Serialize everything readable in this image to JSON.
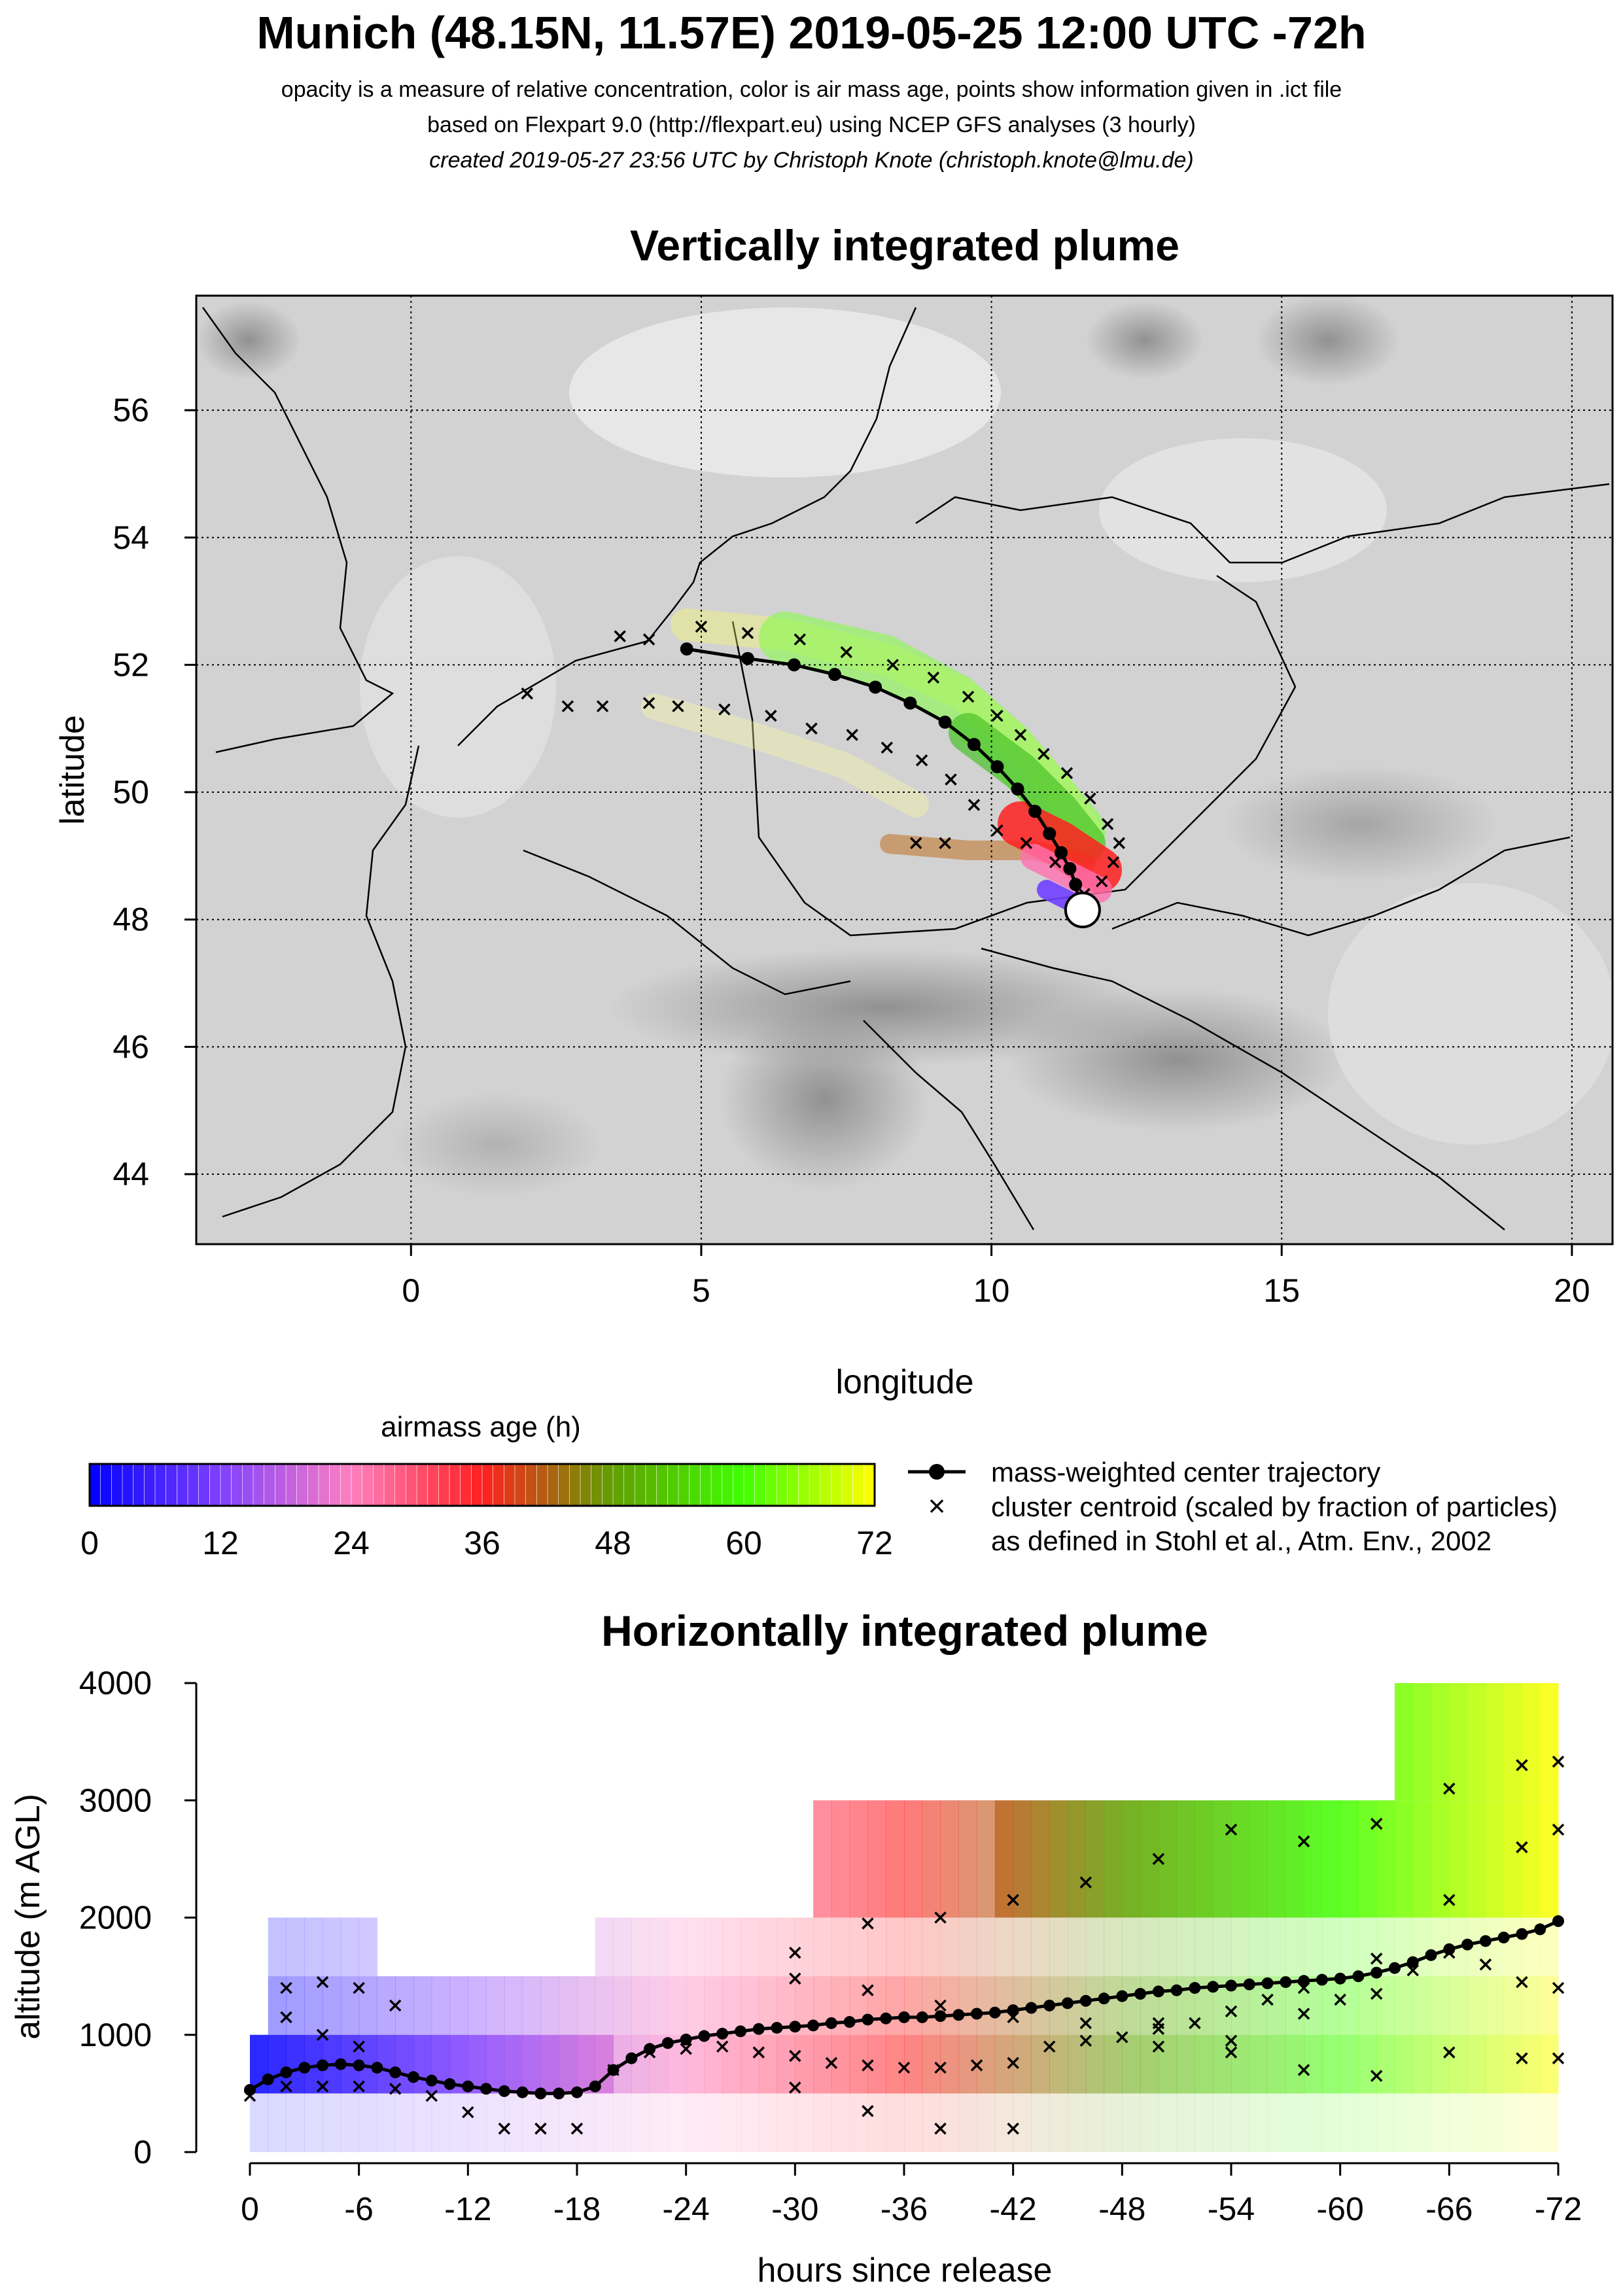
{
  "header": {
    "title": "Munich (48.15N, 11.57E) 2019-05-25 12:00 UTC -72h",
    "subtitle_1": "opacity is a measure of relative concentration, color is air mass age, points show information given in .ict file",
    "subtitle_2": "based on Flexpart 9.0 (http://flexpart.eu) using NCEP GFS analyses (3 hourly)",
    "subtitle_3": "created 2019-05-27 23:56 UTC by Christoph Knote (christoph.knote@lmu.de)"
  },
  "legend": {
    "colorbar_title": "airmass age (h)",
    "colorbar_ticks": [
      "0",
      "12",
      "24",
      "36",
      "48",
      "60",
      "72"
    ],
    "line_label": "mass-weighted center trajectory",
    "cross_label_1": "cluster centroid (scaled by fraction of particles)",
    "cross_label_2": "as defined in Stohl et al., Atm. Env., 2002"
  },
  "colors": {
    "age_0": "#0000ff",
    "age_12": "#8040ff",
    "age_24": "#ff80c0",
    "age_36": "#ff2020",
    "age_48": "#60a000",
    "age_60": "#40ff00",
    "age_72": "#ffff00",
    "terrain": "#c8c8c8",
    "marker": "#000000"
  },
  "chart_data": [
    {
      "type": "scatter",
      "title": "Vertically integrated plume",
      "xlabel": "longitude",
      "ylabel": "latitude",
      "xlim": [
        -3.7,
        20.7
      ],
      "ylim": [
        42.9,
        57.8
      ],
      "xticks": [
        "0",
        "5",
        "10",
        "15",
        "20"
      ],
      "yticks": [
        "44",
        "46",
        "48",
        "50",
        "52",
        "54",
        "56"
      ],
      "grid": true,
      "release_point": {
        "lon": 11.57,
        "lat": 48.15
      },
      "series": [
        {
          "name": "mass-weighted center trajectory",
          "points": [
            [
              11.57,
              48.15
            ],
            [
              11.5,
              48.3
            ],
            [
              11.45,
              48.55
            ],
            [
              11.35,
              48.8
            ],
            [
              11.2,
              49.05
            ],
            [
              11.0,
              49.35
            ],
            [
              10.75,
              49.7
            ],
            [
              10.45,
              50.05
            ],
            [
              10.1,
              50.4
            ],
            [
              9.7,
              50.75
            ],
            [
              9.2,
              51.1
            ],
            [
              8.6,
              51.4
            ],
            [
              8.0,
              51.65
            ],
            [
              7.3,
              51.85
            ],
            [
              6.6,
              52.0
            ],
            [
              5.8,
              52.1
            ],
            [
              4.75,
              52.25
            ]
          ]
        },
        {
          "name": "cluster centroid (scaled by fraction of particles)",
          "points": [
            [
              11.6,
              48.4
            ],
            [
              11.9,
              48.6
            ],
            [
              12.1,
              48.9
            ],
            [
              12.2,
              49.2
            ],
            [
              12.0,
              49.5
            ],
            [
              11.7,
              49.9
            ],
            [
              11.3,
              50.3
            ],
            [
              10.9,
              50.6
            ],
            [
              10.5,
              50.9
            ],
            [
              10.1,
              51.2
            ],
            [
              9.6,
              51.5
            ],
            [
              9.0,
              51.8
            ],
            [
              8.3,
              52.0
            ],
            [
              7.5,
              52.2
            ],
            [
              6.7,
              52.4
            ],
            [
              5.8,
              52.5
            ],
            [
              5.0,
              52.6
            ],
            [
              11.1,
              48.9
            ],
            [
              10.6,
              49.2
            ],
            [
              10.1,
              49.4
            ],
            [
              9.7,
              49.8
            ],
            [
              9.3,
              50.2
            ],
            [
              8.8,
              50.5
            ],
            [
              8.2,
              50.7
            ],
            [
              7.6,
              50.9
            ],
            [
              6.9,
              51.0
            ],
            [
              6.2,
              51.2
            ],
            [
              5.4,
              51.3
            ],
            [
              4.6,
              51.35
            ],
            [
              4.1,
              51.4
            ],
            [
              3.3,
              51.35
            ],
            [
              2.7,
              51.35
            ],
            [
              2.0,
              51.55
            ],
            [
              9.2,
              49.2
            ],
            [
              8.7,
              49.2
            ],
            [
              3.6,
              52.45
            ],
            [
              4.1,
              52.4
            ]
          ]
        }
      ]
    },
    {
      "type": "scatter",
      "title": "Horizontally integrated plume",
      "xlabel": "hours since release",
      "ylabel": "altitude (m AGL)",
      "xlim": [
        0,
        -72
      ],
      "ylim": [
        0,
        4000
      ],
      "xticks": [
        "0",
        "-6",
        "-12",
        "-18",
        "-24",
        "-30",
        "-36",
        "-42",
        "-48",
        "-54",
        "-60",
        "-66",
        "-72"
      ],
      "yticks": [
        "0",
        "1000",
        "2000",
        "3000",
        "4000"
      ],
      "series": [
        {
          "name": "mass-weighted center trajectory",
          "x": [
            0,
            -1,
            -2,
            -3,
            -4,
            -5,
            -6,
            -7,
            -8,
            -9,
            -10,
            -11,
            -12,
            -13,
            -14,
            -15,
            -16,
            -17,
            -18,
            -19,
            -20,
            -21,
            -22,
            -23,
            -24,
            -25,
            -26,
            -27,
            -28,
            -29,
            -30,
            -31,
            -32,
            -33,
            -34,
            -35,
            -36,
            -37,
            -38,
            -39,
            -40,
            -41,
            -42,
            -43,
            -44,
            -45,
            -46,
            -47,
            -48,
            -49,
            -50,
            -51,
            -52,
            -53,
            -54,
            -55,
            -56,
            -57,
            -58,
            -59,
            -60,
            -61,
            -62,
            -63,
            -64,
            -65,
            -66,
            -67,
            -68,
            -69,
            -70,
            -71,
            -72
          ],
          "y": [
            530,
            620,
            680,
            720,
            740,
            750,
            740,
            720,
            680,
            640,
            610,
            580,
            560,
            540,
            520,
            510,
            500,
            500,
            510,
            560,
            700,
            800,
            880,
            930,
            960,
            990,
            1010,
            1030,
            1050,
            1060,
            1070,
            1080,
            1100,
            1110,
            1130,
            1140,
            1150,
            1150,
            1160,
            1170,
            1180,
            1190,
            1210,
            1230,
            1250,
            1270,
            1290,
            1310,
            1330,
            1350,
            1370,
            1380,
            1400,
            1410,
            1420,
            1430,
            1440,
            1450,
            1460,
            1470,
            1480,
            1500,
            1530,
            1570,
            1620,
            1680,
            1730,
            1770,
            1800,
            1830,
            1860,
            1900,
            1970
          ]
        },
        {
          "name": "cluster centroid (scaled by fraction of particles)",
          "points": [
            [
              0,
              480
            ],
            [
              -2,
              560
            ],
            [
              -4,
              560
            ],
            [
              -6,
              560
            ],
            [
              -8,
              540
            ],
            [
              -10,
              480
            ],
            [
              -12,
              340
            ],
            [
              -14,
              200
            ],
            [
              -16,
              200
            ],
            [
              -18,
              200
            ],
            [
              -20,
              700
            ],
            [
              -22,
              850
            ],
            [
              -24,
              880
            ],
            [
              -26,
              900
            ],
            [
              -28,
              850
            ],
            [
              -30,
              820
            ],
            [
              -32,
              760
            ],
            [
              -34,
              740
            ],
            [
              -36,
              720
            ],
            [
              -38,
              720
            ],
            [
              -40,
              740
            ],
            [
              -42,
              760
            ],
            [
              -44,
              900
            ],
            [
              -46,
              950
            ],
            [
              -48,
              980
            ],
            [
              -50,
              1050
            ],
            [
              -52,
              1100
            ],
            [
              -54,
              950
            ],
            [
              -56,
              1300
            ],
            [
              -58,
              1180
            ],
            [
              -60,
              1300
            ],
            [
              -62,
              1350
            ],
            [
              -64,
              1550
            ],
            [
              -66,
              1700
            ],
            [
              -68,
              1600
            ],
            [
              -70,
              1450
            ],
            [
              -72,
              1400
            ],
            [
              -30,
              1700
            ],
            [
              -34,
              1950
            ],
            [
              -38,
              2000
            ],
            [
              -42,
              2150
            ],
            [
              -46,
              2300
            ],
            [
              -50,
              2500
            ],
            [
              -54,
              2750
            ],
            [
              -58,
              2650
            ],
            [
              -62,
              2800
            ],
            [
              -66,
              3100
            ],
            [
              -70,
              3300
            ],
            [
              -72,
              3330
            ],
            [
              -30,
              1480
            ],
            [
              -34,
              1380
            ],
            [
              -38,
              1250
            ],
            [
              -42,
              1150
            ],
            [
              -46,
              1100
            ],
            [
              -50,
              1100
            ],
            [
              -54,
              1200
            ],
            [
              -58,
              1400
            ],
            [
              -62,
              1650
            ],
            [
              -66,
              2150
            ],
            [
              -70,
              2600
            ],
            [
              -72,
              2750
            ],
            [
              -30,
              550
            ],
            [
              -34,
              350
            ],
            [
              -38,
              200
            ],
            [
              -42,
              200
            ],
            [
              -50,
              900
            ],
            [
              -54,
              850
            ],
            [
              -58,
              700
            ],
            [
              -62,
              650
            ],
            [
              -66,
              850
            ],
            [
              -70,
              800
            ],
            [
              -72,
              800
            ],
            [
              -2,
              1400
            ],
            [
              -4,
              1450
            ],
            [
              -6,
              1400
            ],
            [
              -8,
              1250
            ],
            [
              -2,
              1150
            ],
            [
              -4,
              1000
            ],
            [
              -6,
              900
            ]
          ]
        }
      ]
    }
  ]
}
